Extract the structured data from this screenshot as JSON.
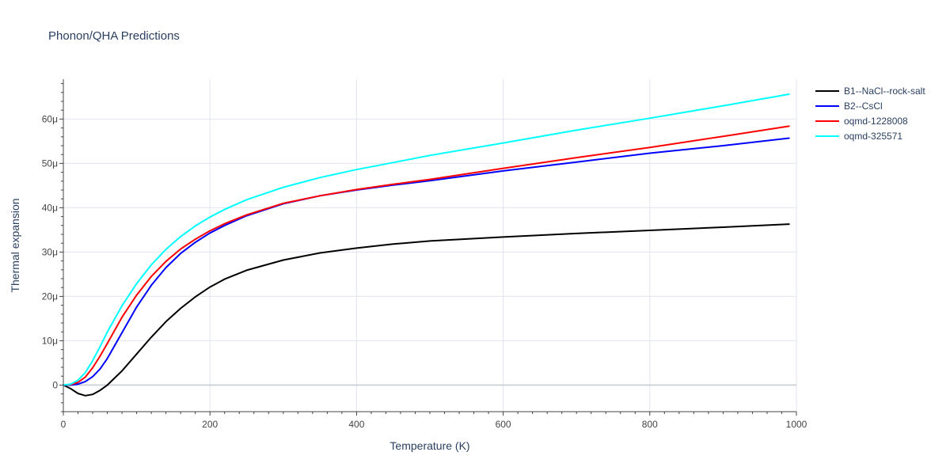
{
  "chart_data": {
    "type": "line",
    "title": "Phonon/QHA Predictions",
    "xlabel": "Temperature (K)",
    "ylabel": "Thermal expansion",
    "xlim": [
      0,
      1000
    ],
    "ylim": [
      -6,
      69
    ],
    "x_ticks": [
      0,
      200,
      400,
      600,
      800,
      1000
    ],
    "x_tick_labels": [
      "0",
      "200",
      "400",
      "600",
      "800",
      "1000"
    ],
    "y_ticks": [
      0,
      10,
      20,
      30,
      40,
      50,
      60
    ],
    "y_tick_labels": [
      "0",
      "10μ",
      "20μ",
      "30μ",
      "40μ",
      "50μ",
      "60μ"
    ],
    "grid": true,
    "legend_position": "top-right",
    "series": [
      {
        "name": "B1--NaCl--rock-salt",
        "color": "#000000",
        "x": [
          0,
          10,
          20,
          30,
          40,
          50,
          60,
          80,
          100,
          120,
          140,
          160,
          180,
          200,
          220,
          250,
          300,
          350,
          400,
          450,
          500,
          600,
          700,
          800,
          900,
          990
        ],
        "y": [
          0,
          -0.8,
          -1.9,
          -2.4,
          -2.1,
          -1.2,
          0.0,
          3.2,
          7.0,
          10.8,
          14.3,
          17.3,
          19.9,
          22.1,
          23.9,
          25.9,
          28.2,
          29.8,
          30.9,
          31.8,
          32.5,
          33.4,
          34.2,
          34.9,
          35.6,
          36.3
        ]
      },
      {
        "name": "B2--CsCl",
        "color": "#0000ff",
        "x": [
          0,
          10,
          20,
          30,
          40,
          50,
          60,
          80,
          100,
          120,
          140,
          160,
          180,
          200,
          220,
          250,
          300,
          350,
          400,
          450,
          500,
          600,
          700,
          800,
          900,
          990
        ],
        "y": [
          0,
          0.0,
          0.2,
          0.8,
          1.9,
          3.6,
          6.0,
          11.8,
          17.6,
          22.5,
          26.5,
          29.7,
          32.2,
          34.3,
          36.0,
          38.2,
          40.9,
          42.7,
          44.0,
          45.1,
          46.1,
          48.3,
          50.3,
          52.3,
          54.0,
          55.7
        ]
      },
      {
        "name": "oqmd-1228008",
        "color": "#ff0000",
        "x": [
          0,
          10,
          20,
          30,
          40,
          50,
          60,
          80,
          100,
          120,
          140,
          160,
          180,
          200,
          220,
          250,
          300,
          350,
          400,
          450,
          500,
          600,
          700,
          800,
          900,
          990
        ],
        "y": [
          0,
          0.1,
          0.6,
          1.8,
          3.9,
          6.5,
          9.4,
          15.3,
          20.3,
          24.5,
          27.9,
          30.7,
          32.9,
          34.8,
          36.4,
          38.4,
          41.0,
          42.7,
          44.1,
          45.3,
          46.4,
          48.9,
          51.3,
          53.6,
          56.1,
          58.4
        ]
      },
      {
        "name": "oqmd-325571",
        "color": "#00ffff",
        "x": [
          0,
          10,
          20,
          30,
          40,
          50,
          60,
          80,
          100,
          120,
          140,
          160,
          180,
          200,
          220,
          250,
          300,
          350,
          400,
          450,
          500,
          600,
          700,
          800,
          900,
          990
        ],
        "y": [
          0,
          0.2,
          1.1,
          2.8,
          5.5,
          8.6,
          12.0,
          17.9,
          22.9,
          27.1,
          30.6,
          33.5,
          35.9,
          37.9,
          39.6,
          41.8,
          44.6,
          46.8,
          48.6,
          50.2,
          51.8,
          54.6,
          57.5,
          60.2,
          63.0,
          65.6
        ]
      }
    ]
  }
}
